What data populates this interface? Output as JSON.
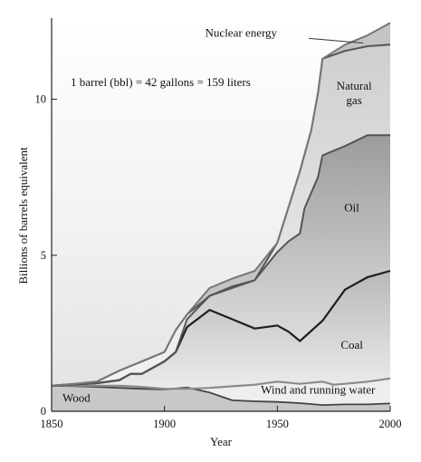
{
  "chart_data": {
    "type": "area",
    "title": "",
    "xlabel": "Year",
    "ylabel": "Billions of barrels equivalent",
    "xlim": [
      1850,
      2000
    ],
    "ylim": [
      0,
      12.6
    ],
    "xticks": [
      1850,
      1900,
      1950,
      2000
    ],
    "yticks": [
      0,
      5,
      10
    ],
    "grid": false,
    "legend": "none",
    "annotations": {
      "conversion": "1 barrel (bbl) = 42 gallons = 159 liters"
    },
    "stack_order": [
      "Wood",
      "Wind and running water",
      "Coal",
      "Oil",
      "Natural gas",
      "Nuclear energy"
    ],
    "series": [
      {
        "name": "Wood",
        "label": "Wood",
        "fill": "#c9c9c9",
        "points": [
          [
            1850,
            0.82
          ],
          [
            1860,
            0.8
          ],
          [
            1870,
            0.78
          ],
          [
            1880,
            0.75
          ],
          [
            1890,
            0.72
          ],
          [
            1900,
            0.7
          ],
          [
            1910,
            0.76
          ],
          [
            1920,
            0.6
          ],
          [
            1930,
            0.35
          ],
          [
            1940,
            0.32
          ],
          [
            1950,
            0.3
          ],
          [
            1960,
            0.26
          ],
          [
            1970,
            0.2
          ],
          [
            1980,
            0.22
          ],
          [
            1990,
            0.22
          ],
          [
            2000,
            0.25
          ]
        ]
      },
      {
        "name": "Wind and running water",
        "label": "Wind and running water",
        "fill": "#e8e8e8",
        "points": [
          [
            1850,
            0.82
          ],
          [
            1860,
            0.82
          ],
          [
            1870,
            0.82
          ],
          [
            1880,
            0.82
          ],
          [
            1890,
            0.78
          ],
          [
            1900,
            0.72
          ],
          [
            1910,
            0.72
          ],
          [
            1920,
            0.75
          ],
          [
            1930,
            0.8
          ],
          [
            1940,
            0.85
          ],
          [
            1950,
            0.95
          ],
          [
            1960,
            0.88
          ],
          [
            1970,
            0.95
          ],
          [
            1975,
            0.85
          ],
          [
            1980,
            0.88
          ],
          [
            1990,
            0.95
          ],
          [
            2000,
            1.05
          ]
        ]
      },
      {
        "name": "Coal",
        "label": "Coal",
        "fill": "#dcdcdc",
        "points": [
          [
            1850,
            0.82
          ],
          [
            1860,
            0.86
          ],
          [
            1870,
            0.9
          ],
          [
            1880,
            1.0
          ],
          [
            1885,
            1.2
          ],
          [
            1890,
            1.2
          ],
          [
            1900,
            1.6
          ],
          [
            1905,
            1.9
          ],
          [
            1910,
            2.7
          ],
          [
            1920,
            3.25
          ],
          [
            1930,
            2.95
          ],
          [
            1940,
            2.65
          ],
          [
            1950,
            2.75
          ],
          [
            1955,
            2.55
          ],
          [
            1960,
            2.25
          ],
          [
            1970,
            2.9
          ],
          [
            1980,
            3.9
          ],
          [
            1990,
            4.3
          ],
          [
            2000,
            4.5
          ]
        ]
      },
      {
        "name": "Oil",
        "label": "Oil",
        "fill": "#a8a8a8",
        "points": [
          [
            1850,
            0.82
          ],
          [
            1860,
            0.86
          ],
          [
            1870,
            0.9
          ],
          [
            1880,
            1.0
          ],
          [
            1885,
            1.2
          ],
          [
            1890,
            1.2
          ],
          [
            1900,
            1.6
          ],
          [
            1905,
            1.9
          ],
          [
            1910,
            2.95
          ],
          [
            1920,
            3.7
          ],
          [
            1930,
            3.95
          ],
          [
            1940,
            4.2
          ],
          [
            1950,
            5.1
          ],
          [
            1955,
            5.45
          ],
          [
            1960,
            5.7
          ],
          [
            1962,
            6.5
          ],
          [
            1965,
            7.0
          ],
          [
            1968,
            7.5
          ],
          [
            1970,
            8.2
          ],
          [
            1980,
            8.5
          ],
          [
            1990,
            8.85
          ],
          [
            2000,
            8.85
          ]
        ]
      },
      {
        "name": "Natural gas",
        "label": "Natural\ngas",
        "fill": "#d4d4d4",
        "points": [
          [
            1850,
            0.82
          ],
          [
            1860,
            0.88
          ],
          [
            1870,
            0.95
          ],
          [
            1880,
            1.3
          ],
          [
            1890,
            1.6
          ],
          [
            1900,
            1.9
          ],
          [
            1905,
            2.6
          ],
          [
            1910,
            3.1
          ],
          [
            1920,
            3.7
          ],
          [
            1930,
            4.0
          ],
          [
            1940,
            4.2
          ],
          [
            1950,
            5.4
          ],
          [
            1960,
            7.7
          ],
          [
            1965,
            9.0
          ],
          [
            1968,
            10.2
          ],
          [
            1970,
            11.3
          ],
          [
            1980,
            11.55
          ],
          [
            1990,
            11.7
          ],
          [
            2000,
            11.75
          ]
        ]
      },
      {
        "name": "Nuclear energy",
        "label": "Nuclear energy",
        "fill": "#bdbdbd",
        "points": [
          [
            1850,
            0.82
          ],
          [
            1860,
            0.88
          ],
          [
            1870,
            0.95
          ],
          [
            1880,
            1.3
          ],
          [
            1890,
            1.6
          ],
          [
            1900,
            1.9
          ],
          [
            1905,
            2.6
          ],
          [
            1910,
            3.1
          ],
          [
            1920,
            3.95
          ],
          [
            1930,
            4.25
          ],
          [
            1940,
            4.5
          ],
          [
            1950,
            5.4
          ],
          [
            1960,
            7.7
          ],
          [
            1965,
            9.0
          ],
          [
            1968,
            10.2
          ],
          [
            1970,
            11.3
          ],
          [
            1980,
            11.75
          ],
          [
            1990,
            12.05
          ],
          [
            2000,
            12.45
          ]
        ]
      }
    ],
    "colors": {
      "background_top": "#f7f7f7",
      "frame": "#222222",
      "line_dark": "#222222",
      "line_mid": "#666666",
      "line_light": "#999999"
    }
  }
}
